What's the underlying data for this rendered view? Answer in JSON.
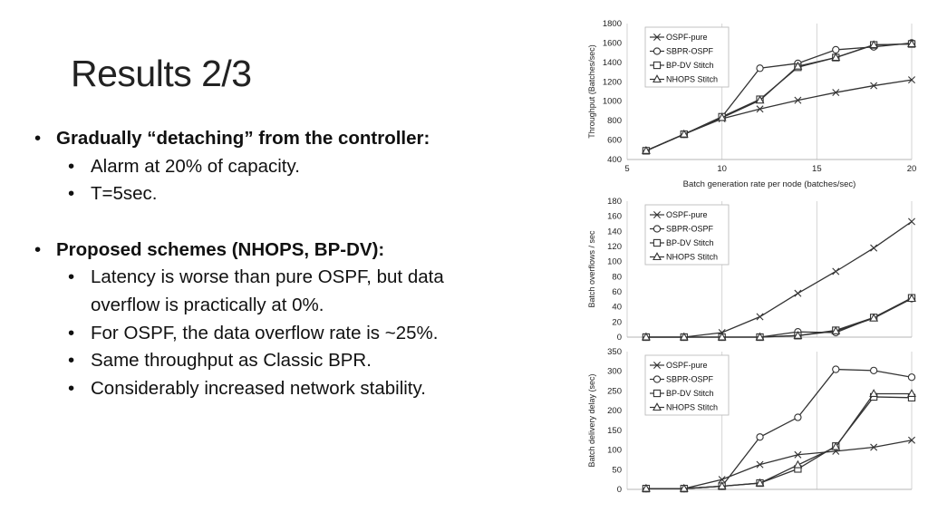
{
  "slide": {
    "title": "Results 2/3",
    "bullets": {
      "b1": "Gradually “detaching” from the controller:",
      "b1_sub1": "Alarm at 20% of capacity.",
      "b1_sub2": "T=5sec.",
      "b2": "Proposed schemes (NHOPS, BP-DV):",
      "b2_sub1_line1": "Latency is worse than pure OSPF, but data",
      "b2_sub1_line2": "overflow is practically at 0%.",
      "b2_sub2": "For OSPF, the data overflow rate is ~25%.",
      "b2_sub3": "Same throughput as Classic BPR.",
      "b2_sub4": "Considerably increased network stability."
    }
  },
  "chart_data": [
    {
      "type": "line",
      "title": "",
      "xlabel": "Batch generation rate per node (batches/sec)",
      "ylabel": "Throughput (Batches/sec)",
      "xlim": [
        5,
        20
      ],
      "ylim": [
        400,
        1800
      ],
      "xticks": [
        5,
        10,
        15,
        20
      ],
      "yticks": [
        400,
        600,
        800,
        1000,
        1200,
        1400,
        1600,
        1800
      ],
      "grid": "vertical",
      "legend": "top-left",
      "x": [
        6,
        8,
        10,
        12,
        14,
        16,
        18,
        20
      ],
      "series": [
        {
          "name": "OSPF-pure",
          "marker": "x",
          "values": [
            490,
            660,
            820,
            920,
            1010,
            1090,
            1160,
            1220
          ]
        },
        {
          "name": "SBPR-OSPF",
          "marker": "circle",
          "values": [
            490,
            660,
            840,
            1340,
            1390,
            1530,
            1560,
            1600
          ]
        },
        {
          "name": "BP-DV Stitch",
          "marker": "square",
          "values": [
            490,
            660,
            840,
            1020,
            1350,
            1450,
            1580,
            1590
          ]
        },
        {
          "name": "NHOPS Stitch",
          "marker": "triangle",
          "values": [
            490,
            660,
            830,
            1010,
            1360,
            1450,
            1580,
            1590
          ]
        }
      ]
    },
    {
      "type": "line",
      "title": "",
      "xlabel": "",
      "ylabel": "Batch overflows / sec",
      "xlim": [
        5,
        20
      ],
      "ylim": [
        0,
        180
      ],
      "xticks": [],
      "yticks": [
        0,
        20,
        40,
        60,
        80,
        100,
        120,
        140,
        160,
        180
      ],
      "grid": "vertical",
      "legend": "top-left",
      "x": [
        6,
        8,
        10,
        12,
        14,
        16,
        18,
        20
      ],
      "series": [
        {
          "name": "OSPF-pure",
          "marker": "x",
          "values": [
            0,
            0,
            6,
            27,
            58,
            87,
            118,
            153
          ]
        },
        {
          "name": "SBPR-OSPF",
          "marker": "circle",
          "values": [
            0,
            0,
            0,
            0,
            7,
            6,
            26,
            51
          ]
        },
        {
          "name": "BP-DV Stitch",
          "marker": "square",
          "values": [
            0,
            0,
            0,
            0,
            2,
            9,
            26,
            52
          ]
        },
        {
          "name": "NHOPS Stitch",
          "marker": "triangle",
          "values": [
            0,
            0,
            0,
            0,
            2,
            8,
            25,
            51
          ]
        }
      ]
    },
    {
      "type": "line",
      "title": "",
      "xlabel": "",
      "ylabel": "Batch delivery delay (sec)",
      "xlim": [
        5,
        20
      ],
      "ylim": [
        0,
        350
      ],
      "xticks": [],
      "yticks": [
        0,
        50,
        100,
        150,
        200,
        250,
        300,
        350
      ],
      "grid": "vertical",
      "legend": "top-left",
      "x": [
        6,
        8,
        10,
        12,
        14,
        16,
        18,
        20
      ],
      "series": [
        {
          "name": "OSPF-pure",
          "marker": "x",
          "values": [
            2,
            2,
            25,
            63,
            88,
            97,
            107,
            125
          ]
        },
        {
          "name": "SBPR-OSPF",
          "marker": "circle",
          "values": [
            2,
            2,
            8,
            133,
            183,
            305,
            302,
            285
          ]
        },
        {
          "name": "BP-DV Stitch",
          "marker": "square",
          "values": [
            2,
            2,
            8,
            16,
            52,
            110,
            235,
            233
          ]
        },
        {
          "name": "NHOPS Stitch",
          "marker": "triangle",
          "values": [
            2,
            2,
            8,
            16,
            62,
            108,
            243,
            243
          ]
        }
      ]
    }
  ]
}
